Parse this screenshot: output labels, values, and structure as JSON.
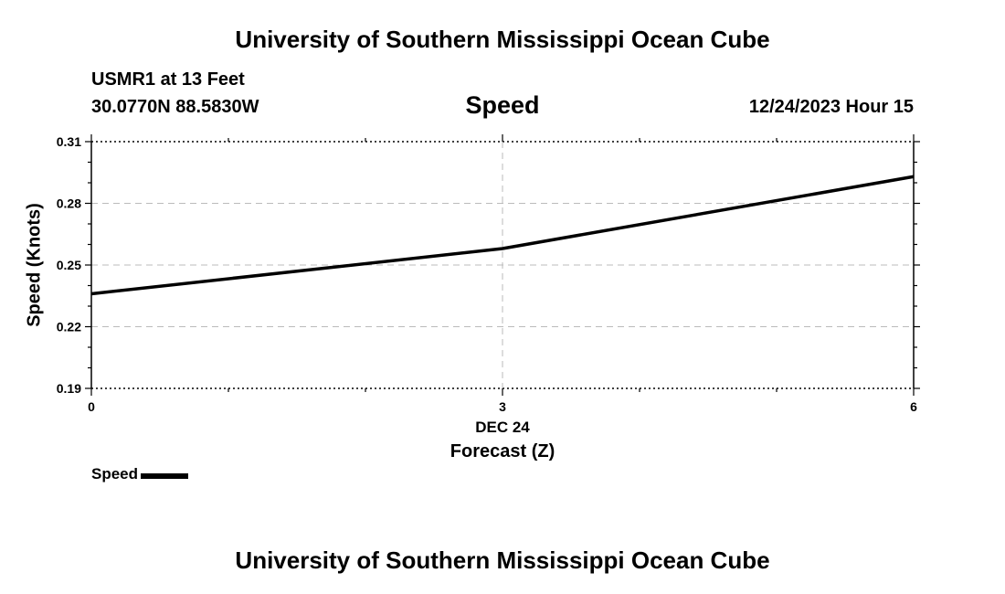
{
  "header": {
    "title_top": "University of Southern Mississippi Ocean Cube",
    "station": "USMR1 at 13 Feet",
    "coords": "30.0770N  88.5830W",
    "datetime": "12/24/2023 Hour 15"
  },
  "footer": {
    "title_bottom": "University of Southern Mississippi Ocean Cube"
  },
  "chart_data": {
    "type": "line",
    "title": "Speed",
    "xlabel": "Forecast (Z)",
    "x_sublabel": "DEC 24",
    "ylabel": "Speed (Knots)",
    "x": [
      0,
      3,
      6
    ],
    "x_ticks": [
      "0",
      "3",
      "6"
    ],
    "y_ticks": [
      "0.31",
      "0.28",
      "0.25",
      "0.22",
      "0.19"
    ],
    "y_tick_values": [
      0.31,
      0.28,
      0.25,
      0.22,
      0.19
    ],
    "xlim": [
      0,
      6
    ],
    "ylim": [
      0.19,
      0.31
    ],
    "grid": true,
    "legend_position": "bottom-left",
    "series": [
      {
        "name": "Speed",
        "color": "#000000",
        "values": [
          0.236,
          0.258,
          0.293
        ]
      }
    ]
  }
}
